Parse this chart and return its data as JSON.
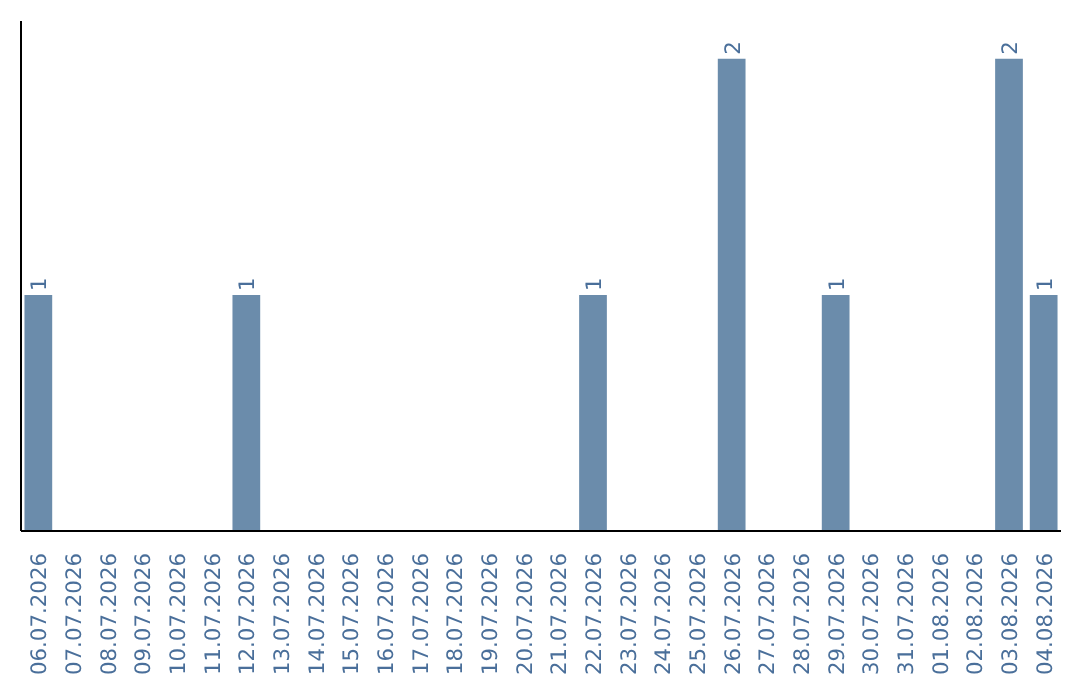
{
  "chart_data": {
    "type": "bar",
    "categories": [
      "06.07.2026",
      "07.07.2026",
      "08.07.2026",
      "09.07.2026",
      "10.07.2026",
      "11.07.2026",
      "12.07.2026",
      "13.07.2026",
      "14.07.2026",
      "15.07.2026",
      "16.07.2026",
      "17.07.2026",
      "18.07.2026",
      "19.07.2026",
      "20.07.2026",
      "21.07.2026",
      "22.07.2026",
      "23.07.2026",
      "24.07.2026",
      "25.07.2026",
      "26.07.2026",
      "27.07.2026",
      "28.07.2026",
      "29.07.2026",
      "30.07.2026",
      "31.07.2026",
      "01.08.2026",
      "02.08.2026",
      "03.08.2026",
      "04.08.2026"
    ],
    "values": [
      1,
      0,
      0,
      0,
      0,
      0,
      1,
      0,
      0,
      0,
      0,
      0,
      0,
      0,
      0,
      0,
      1,
      0,
      0,
      0,
      2,
      0,
      0,
      1,
      0,
      0,
      0,
      0,
      2,
      1
    ],
    "value_labels": [
      "1",
      null,
      null,
      null,
      null,
      null,
      "1",
      null,
      null,
      null,
      null,
      null,
      null,
      null,
      null,
      null,
      "1",
      null,
      null,
      null,
      "2",
      null,
      null,
      "1",
      null,
      null,
      null,
      null,
      "2",
      "1"
    ],
    "color": "#6b8cab",
    "grid": false
  }
}
